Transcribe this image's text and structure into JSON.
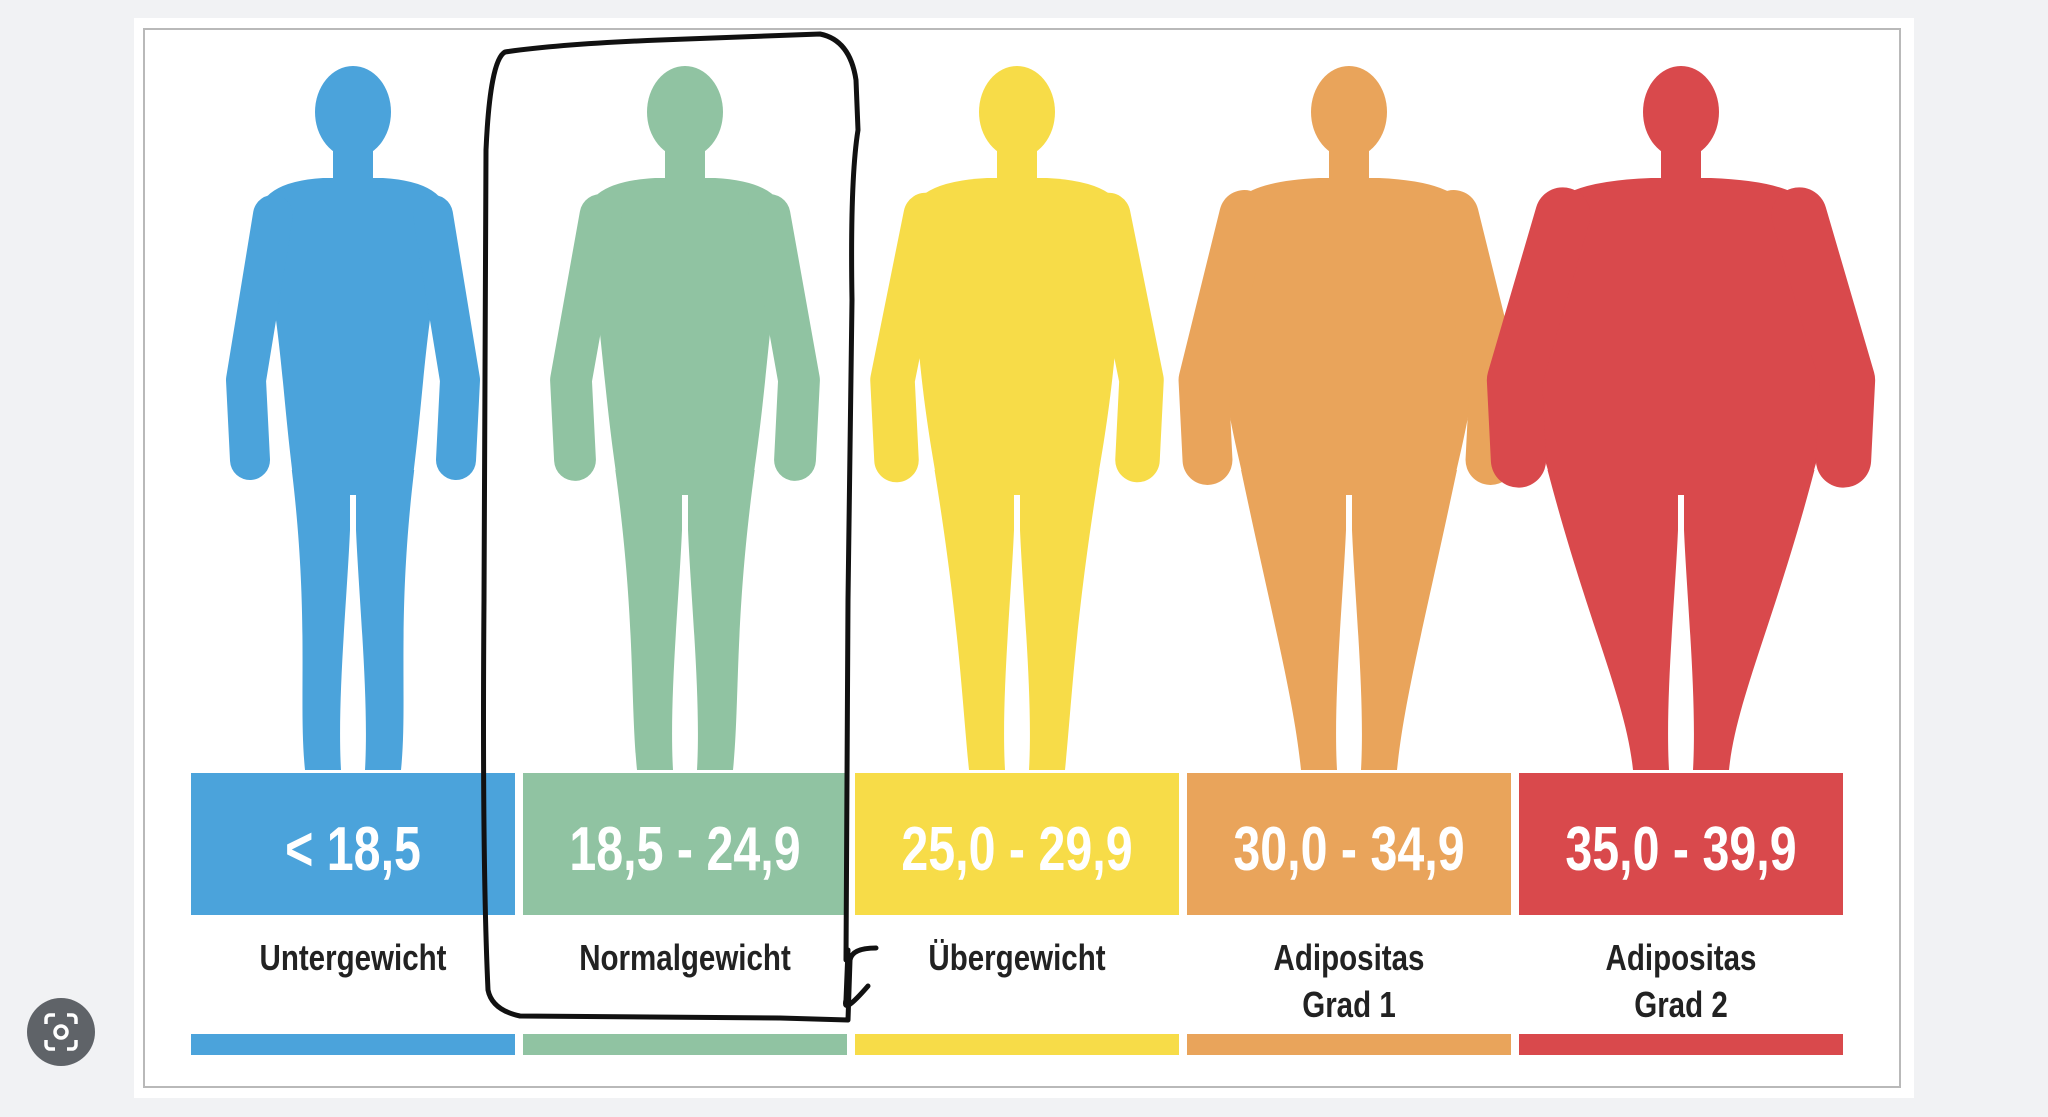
{
  "classes": [
    {
      "range": "< 18,5",
      "label": [
        "Untergewicht"
      ],
      "color": "#4ba3db"
    },
    {
      "range": "18,5 - 24,9",
      "label": [
        "Normalgewicht"
      ],
      "color": "#90c3a2"
    },
    {
      "range": "25,0 - 29,9",
      "label": [
        "Übergewicht"
      ],
      "color": "#f7dc48"
    },
    {
      "range": "30,0 - 34,9",
      "label": [
        "Adipositas",
        "Grad 1"
      ],
      "color": "#e9a45b"
    },
    {
      "range": "35,0 - 39,9",
      "label": [
        "Adipositas",
        "Grad 2"
      ],
      "color": "#d9494c"
    }
  ]
}
